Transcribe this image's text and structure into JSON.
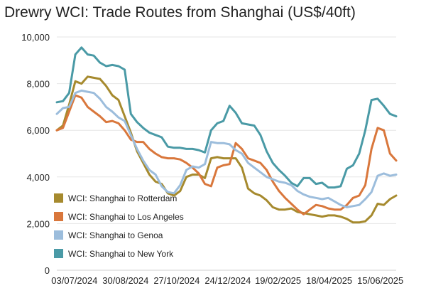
{
  "chart_data": {
    "type": "line",
    "title": "Drewry WCI: Trade Routes from Shanghai (US$/40ft)",
    "xlabel": "",
    "ylabel": "",
    "ylim": [
      0,
      10000
    ],
    "yticks": [
      0,
      2000,
      4000,
      6000,
      8000,
      10000
    ],
    "ytick_labels": [
      "0",
      "2,000",
      "4,000",
      "6,000",
      "8,000",
      "10,000"
    ],
    "xlim": [
      "2024-06-13",
      "2025-07-03"
    ],
    "xticks": [
      "2024-07-03",
      "2024-08-30",
      "2024-10-27",
      "2024-12-24",
      "2025-02-19",
      "2025-04-18",
      "2025-06-15"
    ],
    "xtick_labels": [
      "03/07/2024",
      "30/08/2024",
      "27/10/2024",
      "24/12/2024",
      "19/02/2025",
      "18/04/2025",
      "15/06/2025"
    ],
    "grid": "horizontal",
    "legend_position": "bottom-left",
    "series": [
      {
        "name": "WCI: Shanghai to Rotterdam",
        "color": "#a68a2e",
        "points": [
          [
            "2024-06-13",
            6000
          ],
          [
            "2024-06-20",
            6200
          ],
          [
            "2024-06-27",
            7100
          ],
          [
            "2024-07-04",
            8100
          ],
          [
            "2024-07-11",
            8000
          ],
          [
            "2024-07-18",
            8300
          ],
          [
            "2024-07-25",
            8250
          ],
          [
            "2024-08-01",
            8200
          ],
          [
            "2024-08-08",
            7900
          ],
          [
            "2024-08-15",
            7500
          ],
          [
            "2024-08-22",
            7300
          ],
          [
            "2024-08-29",
            6600
          ],
          [
            "2024-09-05",
            5900
          ],
          [
            "2024-09-12",
            5100
          ],
          [
            "2024-09-19",
            4600
          ],
          [
            "2024-09-26",
            4100
          ],
          [
            "2024-10-03",
            3800
          ],
          [
            "2024-10-10",
            3700
          ],
          [
            "2024-10-17",
            3300
          ],
          [
            "2024-10-24",
            3200
          ],
          [
            "2024-10-31",
            3400
          ],
          [
            "2024-11-07",
            4000
          ],
          [
            "2024-11-14",
            4100
          ],
          [
            "2024-11-21",
            4100
          ],
          [
            "2024-11-28",
            3950
          ],
          [
            "2024-12-05",
            4800
          ],
          [
            "2024-12-12",
            4850
          ],
          [
            "2024-12-19",
            4800
          ],
          [
            "2024-12-26",
            4800
          ],
          [
            "2025-01-02",
            4800
          ],
          [
            "2025-01-09",
            4400
          ],
          [
            "2025-01-16",
            3500
          ],
          [
            "2025-01-23",
            3300
          ],
          [
            "2025-01-30",
            3200
          ],
          [
            "2025-02-06",
            3000
          ],
          [
            "2025-02-13",
            2700
          ],
          [
            "2025-02-20",
            2600
          ],
          [
            "2025-02-27",
            2600
          ],
          [
            "2025-03-06",
            2650
          ],
          [
            "2025-03-13",
            2500
          ],
          [
            "2025-03-20",
            2450
          ],
          [
            "2025-03-27",
            2400
          ],
          [
            "2025-04-03",
            2350
          ],
          [
            "2025-04-10",
            2300
          ],
          [
            "2025-04-17",
            2350
          ],
          [
            "2025-04-24",
            2350
          ],
          [
            "2025-05-01",
            2300
          ],
          [
            "2025-05-08",
            2200
          ],
          [
            "2025-05-15",
            2050
          ],
          [
            "2025-05-22",
            2050
          ],
          [
            "2025-05-29",
            2100
          ],
          [
            "2025-06-05",
            2350
          ],
          [
            "2025-06-12",
            2850
          ],
          [
            "2025-06-19",
            2800
          ],
          [
            "2025-06-26",
            3050
          ],
          [
            "2025-07-03",
            3200
          ]
        ]
      },
      {
        "name": "WCI: Shanghai to Los Angeles",
        "color": "#d9773c",
        "points": [
          [
            "2024-06-13",
            6000
          ],
          [
            "2024-06-20",
            6100
          ],
          [
            "2024-06-27",
            6800
          ],
          [
            "2024-07-04",
            7500
          ],
          [
            "2024-07-11",
            7400
          ],
          [
            "2024-07-18",
            7000
          ],
          [
            "2024-07-25",
            6800
          ],
          [
            "2024-08-01",
            6600
          ],
          [
            "2024-08-08",
            6350
          ],
          [
            "2024-08-15",
            6400
          ],
          [
            "2024-08-22",
            6300
          ],
          [
            "2024-08-29",
            6000
          ],
          [
            "2024-09-05",
            5600
          ],
          [
            "2024-09-12",
            5500
          ],
          [
            "2024-09-19",
            5500
          ],
          [
            "2024-09-26",
            5200
          ],
          [
            "2024-10-03",
            5000
          ],
          [
            "2024-10-10",
            4850
          ],
          [
            "2024-10-17",
            4800
          ],
          [
            "2024-10-24",
            4800
          ],
          [
            "2024-10-31",
            4750
          ],
          [
            "2024-11-07",
            4600
          ],
          [
            "2024-11-14",
            4400
          ],
          [
            "2024-11-21",
            4150
          ],
          [
            "2024-11-28",
            3700
          ],
          [
            "2024-12-05",
            3600
          ],
          [
            "2024-12-12",
            4400
          ],
          [
            "2024-12-19",
            4500
          ],
          [
            "2024-12-26",
            4550
          ],
          [
            "2025-01-02",
            5450
          ],
          [
            "2025-01-09",
            5200
          ],
          [
            "2025-01-16",
            4800
          ],
          [
            "2025-01-23",
            4700
          ],
          [
            "2025-01-30",
            4600
          ],
          [
            "2025-02-06",
            4300
          ],
          [
            "2025-02-13",
            3800
          ],
          [
            "2025-02-20",
            3400
          ],
          [
            "2025-02-27",
            3100
          ],
          [
            "2025-03-06",
            2850
          ],
          [
            "2025-03-13",
            2600
          ],
          [
            "2025-03-20",
            2400
          ],
          [
            "2025-03-27",
            2600
          ],
          [
            "2025-04-03",
            2800
          ],
          [
            "2025-04-10",
            2750
          ],
          [
            "2025-04-17",
            2650
          ],
          [
            "2025-04-24",
            2600
          ],
          [
            "2025-05-01",
            2600
          ],
          [
            "2025-05-08",
            2800
          ],
          [
            "2025-05-15",
            3100
          ],
          [
            "2025-05-22",
            3200
          ],
          [
            "2025-05-29",
            3650
          ],
          [
            "2025-06-05",
            5200
          ],
          [
            "2025-06-12",
            6100
          ],
          [
            "2025-06-19",
            6000
          ],
          [
            "2025-06-26",
            5000
          ],
          [
            "2025-07-03",
            4700
          ]
        ]
      },
      {
        "name": "WCI: Shanghai to Genoa",
        "color": "#9cbddc",
        "points": [
          [
            "2024-06-13",
            6700
          ],
          [
            "2024-06-20",
            6950
          ],
          [
            "2024-06-27",
            7000
          ],
          [
            "2024-07-04",
            7600
          ],
          [
            "2024-07-11",
            7700
          ],
          [
            "2024-07-18",
            7650
          ],
          [
            "2024-07-25",
            7600
          ],
          [
            "2024-08-01",
            7350
          ],
          [
            "2024-08-08",
            7000
          ],
          [
            "2024-08-15",
            6800
          ],
          [
            "2024-08-22",
            6550
          ],
          [
            "2024-08-29",
            6400
          ],
          [
            "2024-09-05",
            5800
          ],
          [
            "2024-09-12",
            5200
          ],
          [
            "2024-09-19",
            4700
          ],
          [
            "2024-09-26",
            4300
          ],
          [
            "2024-10-03",
            4100
          ],
          [
            "2024-10-10",
            3600
          ],
          [
            "2024-10-17",
            3350
          ],
          [
            "2024-10-24",
            3300
          ],
          [
            "2024-10-31",
            3650
          ],
          [
            "2024-11-07",
            4300
          ],
          [
            "2024-11-14",
            4450
          ],
          [
            "2024-11-21",
            4400
          ],
          [
            "2024-11-28",
            4550
          ],
          [
            "2024-12-05",
            5500
          ],
          [
            "2024-12-12",
            5450
          ],
          [
            "2024-12-19",
            5450
          ],
          [
            "2024-12-26",
            5400
          ],
          [
            "2025-01-02",
            5150
          ],
          [
            "2025-01-09",
            5000
          ],
          [
            "2025-01-16",
            4600
          ],
          [
            "2025-01-23",
            4400
          ],
          [
            "2025-01-30",
            4200
          ],
          [
            "2025-02-06",
            4000
          ],
          [
            "2025-02-13",
            3900
          ],
          [
            "2025-02-20",
            3800
          ],
          [
            "2025-02-27",
            3750
          ],
          [
            "2025-03-06",
            3650
          ],
          [
            "2025-03-13",
            3400
          ],
          [
            "2025-03-20",
            3250
          ],
          [
            "2025-03-27",
            3150
          ],
          [
            "2025-04-03",
            3100
          ],
          [
            "2025-04-10",
            3050
          ],
          [
            "2025-04-17",
            3100
          ],
          [
            "2025-04-24",
            2950
          ],
          [
            "2025-05-01",
            2800
          ],
          [
            "2025-05-08",
            2700
          ],
          [
            "2025-05-15",
            2750
          ],
          [
            "2025-05-22",
            2800
          ],
          [
            "2025-05-29",
            3050
          ],
          [
            "2025-06-05",
            3350
          ],
          [
            "2025-06-12",
            4050
          ],
          [
            "2025-06-19",
            4150
          ],
          [
            "2025-06-26",
            4050
          ],
          [
            "2025-07-03",
            4100
          ]
        ]
      },
      {
        "name": "WCI: Shanghai to New York",
        "color": "#4a9aa6",
        "points": [
          [
            "2024-06-13",
            7200
          ],
          [
            "2024-06-20",
            7250
          ],
          [
            "2024-06-27",
            7600
          ],
          [
            "2024-07-04",
            9250
          ],
          [
            "2024-07-11",
            9550
          ],
          [
            "2024-07-18",
            9250
          ],
          [
            "2024-07-25",
            9200
          ],
          [
            "2024-08-01",
            8900
          ],
          [
            "2024-08-08",
            8750
          ],
          [
            "2024-08-15",
            8800
          ],
          [
            "2024-08-22",
            8750
          ],
          [
            "2024-08-29",
            8600
          ],
          [
            "2024-09-05",
            6700
          ],
          [
            "2024-09-12",
            6350
          ],
          [
            "2024-09-19",
            6100
          ],
          [
            "2024-09-26",
            5900
          ],
          [
            "2024-10-03",
            5800
          ],
          [
            "2024-10-10",
            5700
          ],
          [
            "2024-10-17",
            5300
          ],
          [
            "2024-10-24",
            5250
          ],
          [
            "2024-10-31",
            5250
          ],
          [
            "2024-11-07",
            5200
          ],
          [
            "2024-11-14",
            5200
          ],
          [
            "2024-11-21",
            5150
          ],
          [
            "2024-11-28",
            5050
          ],
          [
            "2024-12-05",
            6000
          ],
          [
            "2024-12-12",
            6300
          ],
          [
            "2024-12-19",
            6400
          ],
          [
            "2024-12-26",
            7050
          ],
          [
            "2025-01-02",
            6750
          ],
          [
            "2025-01-09",
            6300
          ],
          [
            "2025-01-16",
            6250
          ],
          [
            "2025-01-23",
            6200
          ],
          [
            "2025-01-30",
            5800
          ],
          [
            "2025-02-06",
            5100
          ],
          [
            "2025-02-13",
            4600
          ],
          [
            "2025-02-20",
            4300
          ],
          [
            "2025-02-27",
            4050
          ],
          [
            "2025-03-06",
            3750
          ],
          [
            "2025-03-13",
            3600
          ],
          [
            "2025-03-20",
            3950
          ],
          [
            "2025-03-27",
            3950
          ],
          [
            "2025-04-03",
            3700
          ],
          [
            "2025-04-10",
            3750
          ],
          [
            "2025-04-17",
            3550
          ],
          [
            "2025-04-24",
            3550
          ],
          [
            "2025-05-01",
            3600
          ],
          [
            "2025-05-08",
            4350
          ],
          [
            "2025-05-15",
            4500
          ],
          [
            "2025-05-22",
            5000
          ],
          [
            "2025-05-29",
            6000
          ],
          [
            "2025-06-05",
            7300
          ],
          [
            "2025-06-12",
            7350
          ],
          [
            "2025-06-19",
            7050
          ],
          [
            "2025-06-26",
            6700
          ],
          [
            "2025-07-03",
            6600
          ]
        ]
      }
    ]
  }
}
